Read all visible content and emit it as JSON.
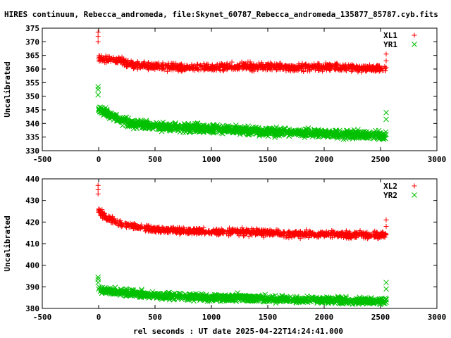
{
  "title": "HIRES continuum, Rebecca_andromeda, file:Skynet_60787_Rebecca_andromeda_135877_85787.cyb.fits",
  "xlabel": "rel seconds : UT date 2025-04-22T14:24:41.000",
  "colors": {
    "red": "#ff0000",
    "green": "#00c000"
  },
  "chart_data": [
    {
      "type": "scatter",
      "ylabel": "Uncalibrated",
      "xlim": [
        -500,
        3000
      ],
      "ylim": [
        330,
        375
      ],
      "xticks": [
        -500,
        0,
        500,
        1000,
        1500,
        2000,
        2500,
        3000
      ],
      "yticks": [
        330,
        335,
        340,
        345,
        350,
        355,
        360,
        365,
        370,
        375
      ],
      "legend_position": "top-right",
      "series": [
        {
          "name": "XL1",
          "marker": "plus",
          "color": "#ff0000",
          "x": [
            -5,
            -5,
            -5,
            0,
            100,
            200,
            300,
            500,
            700,
            1000,
            1250,
            1500,
            1750,
            2000,
            2250,
            2500,
            2550,
            2550,
            2550
          ],
          "y": [
            373.5,
            372,
            370,
            364,
            363.5,
            363,
            361.5,
            361,
            360.5,
            360.5,
            361,
            360.8,
            360.5,
            360.8,
            360.5,
            360,
            360.5,
            365.5,
            363
          ],
          "spread": 1.3
        },
        {
          "name": "YR1",
          "marker": "cross",
          "color": "#00c000",
          "x": [
            -5,
            -5,
            -5,
            0,
            100,
            200,
            300,
            500,
            700,
            1000,
            1250,
            1500,
            1750,
            2000,
            2250,
            2500,
            2550,
            2550,
            2550
          ],
          "y": [
            353.5,
            352.5,
            350.5,
            345.5,
            343,
            341,
            340,
            339,
            338.5,
            338,
            337.5,
            337,
            336.5,
            336.5,
            336,
            335.5,
            336,
            344,
            341.5
          ],
          "spread": 1.5
        }
      ]
    },
    {
      "type": "scatter",
      "ylabel": "Uncalibrated",
      "xlim": [
        -500,
        3000
      ],
      "ylim": [
        380,
        440
      ],
      "xticks": [
        -500,
        0,
        500,
        1000,
        1500,
        2000,
        2500,
        3000
      ],
      "yticks": [
        380,
        390,
        400,
        410,
        420,
        430,
        440
      ],
      "legend_position": "top-right",
      "series": [
        {
          "name": "XL2",
          "marker": "plus",
          "color": "#ff0000",
          "x": [
            -5,
            -5,
            -5,
            0,
            100,
            200,
            300,
            500,
            700,
            1000,
            1250,
            1500,
            1750,
            2000,
            2250,
            2500,
            2550,
            2550,
            2550
          ],
          "y": [
            437,
            435,
            433,
            425,
            421,
            419,
            418,
            416.5,
            416,
            415.5,
            415.5,
            415,
            414.5,
            414.5,
            414,
            414,
            414,
            421,
            418
          ],
          "spread": 1.5
        },
        {
          "name": "YR2",
          "marker": "cross",
          "color": "#00c000",
          "x": [
            -5,
            -5,
            -5,
            0,
            100,
            200,
            300,
            500,
            700,
            1000,
            1250,
            1500,
            1750,
            2000,
            2250,
            2500,
            2550,
            2550,
            2550
          ],
          "y": [
            394.5,
            393.5,
            392,
            389,
            388,
            387.5,
            387,
            386,
            385.5,
            385,
            385,
            384.5,
            384,
            384,
            383.5,
            383.5,
            384,
            392,
            389
          ],
          "spread": 1.5
        }
      ]
    }
  ]
}
